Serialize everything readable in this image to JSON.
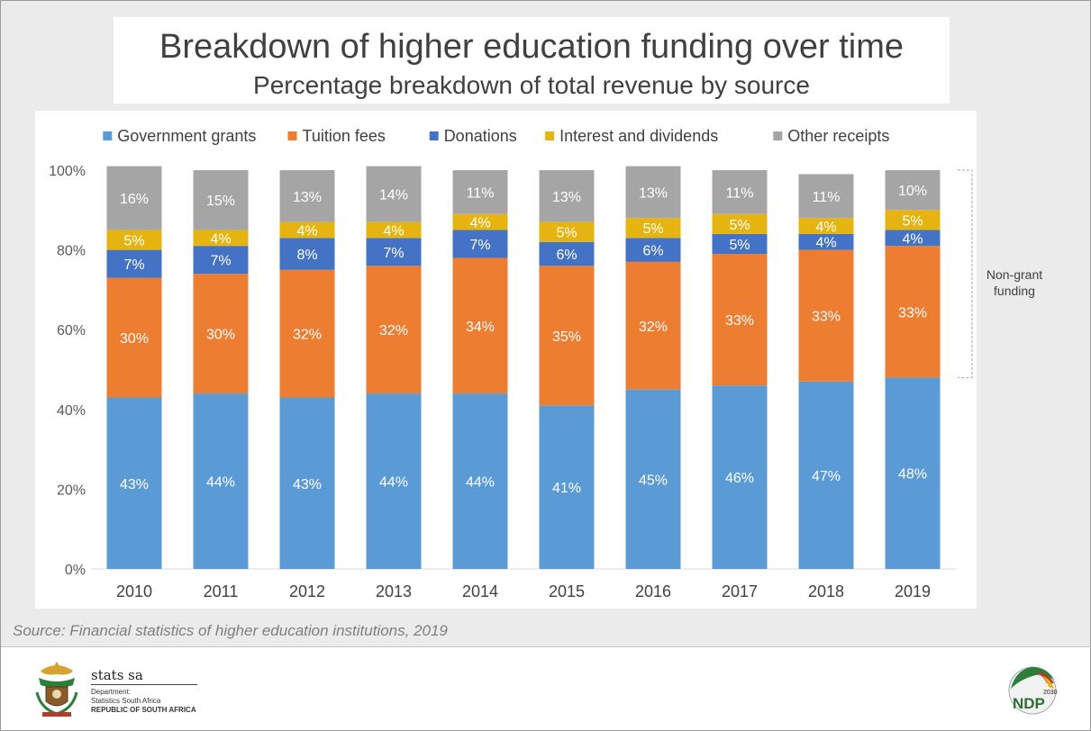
{
  "header": {
    "title": "Breakdown of higher education funding over time",
    "subtitle": "Percentage breakdown of total revenue by source"
  },
  "chart_data": {
    "type": "bar",
    "stacked": true,
    "title": "Breakdown of higher education funding over time",
    "subtitle": "Percentage breakdown of total revenue by source",
    "categories": [
      "2010",
      "2011",
      "2012",
      "2013",
      "2014",
      "2015",
      "2016",
      "2017",
      "2018",
      "2019"
    ],
    "ylim": [
      0,
      100
    ],
    "yticks": [
      "0%",
      "20%",
      "40%",
      "60%",
      "80%",
      "100%"
    ],
    "legend_position": "top",
    "series": [
      {
        "name": "Government grants",
        "color": "#5b9bd5",
        "label_color": "#ffffff",
        "values": [
          43,
          44,
          43,
          44,
          44,
          41,
          45,
          46,
          47,
          48
        ],
        "labels": [
          "43%",
          "44%",
          "43%",
          "44%",
          "44%",
          "41%",
          "45%",
          "46%",
          "47%",
          "48%"
        ]
      },
      {
        "name": "Tuition fees",
        "color": "#ed7d31",
        "label_color": "#ffffff",
        "values": [
          30,
          30,
          32,
          32,
          34,
          35,
          32,
          33,
          33,
          33
        ],
        "labels": [
          "30%",
          "30%",
          "32%",
          "32%",
          "34%",
          "35%",
          "32%",
          "33%",
          "33%",
          "33%"
        ]
      },
      {
        "name": "Donations",
        "color": "#4472c4",
        "label_color": "#ffffff",
        "values": [
          7,
          7,
          8,
          7,
          7,
          6,
          6,
          5,
          4,
          4
        ],
        "labels": [
          "7%",
          "7%",
          "8%",
          "7%",
          "7%",
          "6%",
          "6%",
          "5%",
          "4%",
          "4%"
        ]
      },
      {
        "name": "Interest and dividends",
        "color": "#e6b410",
        "label_color": "#ffffff",
        "values": [
          5,
          4,
          4,
          4,
          4,
          5,
          5,
          5,
          4,
          5
        ],
        "labels": [
          "5%",
          "4%",
          "4%",
          "4%",
          "4%",
          "5%",
          "5%",
          "5%",
          "4%",
          "5%"
        ]
      },
      {
        "name": "Other receipts",
        "color": "#a5a5a5",
        "label_color": "#ffffff",
        "values": [
          16,
          15,
          13,
          14,
          11,
          13,
          13,
          11,
          11,
          10
        ],
        "labels": [
          "16%",
          "15%",
          "13%",
          "14%",
          "11%",
          "13%",
          "13%",
          "11%",
          "11%",
          "10%"
        ]
      }
    ],
    "annotation": {
      "text_lines": [
        "Non-grant",
        "funding"
      ]
    }
  },
  "source": "Source: Financial statistics of higher education institutions, 2019",
  "footer": {
    "org_name": "stats sa",
    "org_line1": "Department:",
    "org_line2": "Statistics South Africa",
    "org_line3": "REPUBLIC OF SOUTH AFRICA",
    "ndp_text": "NDP",
    "ndp_year": "2030"
  }
}
